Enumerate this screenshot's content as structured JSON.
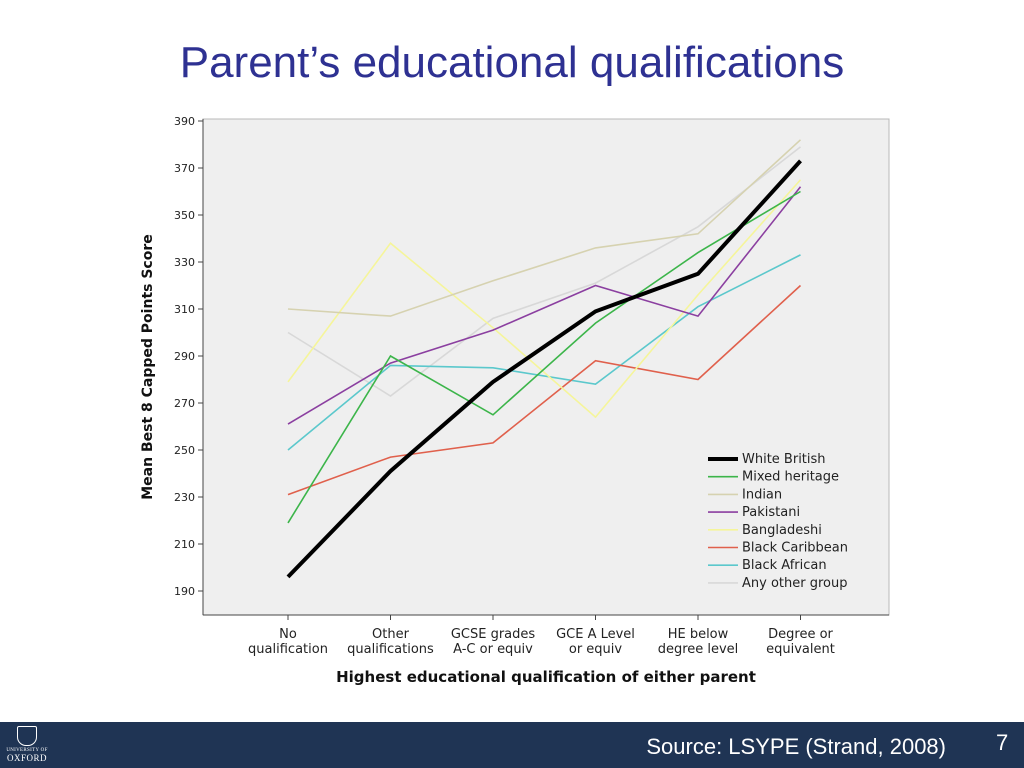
{
  "slide": {
    "title": "Parent’s educational qualifications",
    "source": "Source:  LSYPE (Strand, 2008)",
    "page_number": "7",
    "logo": {
      "line1": "UNIVERSITY OF",
      "line2": "OXFORD"
    }
  },
  "chart_data": {
    "type": "line",
    "title": "",
    "xlabel": "Highest educational qualification of either parent",
    "ylabel": "Mean Best 8 Capped Points Score",
    "ylim": [
      190,
      390
    ],
    "yticks": [
      190,
      210,
      230,
      250,
      270,
      290,
      310,
      330,
      350,
      370,
      390
    ],
    "categories": [
      [
        "No",
        "qualification"
      ],
      [
        "Other",
        "qualifications"
      ],
      [
        "GCSE grades",
        "A-C or equiv"
      ],
      [
        "GCE A Level",
        "or equiv"
      ],
      [
        "HE below",
        "degree level"
      ],
      [
        "Degree or",
        "equivalent"
      ]
    ],
    "grid": false,
    "legend_position": "bottom-right",
    "series": [
      {
        "name": "White British",
        "color": "#000000",
        "width": 4,
        "values": [
          196,
          241,
          279,
          309,
          325,
          373
        ]
      },
      {
        "name": "Mixed heritage",
        "color": "#3cb54a",
        "width": 1.6,
        "values": [
          219,
          290,
          265,
          304,
          334,
          360
        ]
      },
      {
        "name": "Indian",
        "color": "#d6d2b0",
        "width": 1.6,
        "values": [
          310,
          307,
          322,
          336,
          342,
          382
        ]
      },
      {
        "name": "Pakistani",
        "color": "#8b3fa0",
        "width": 1.6,
        "values": [
          261,
          287,
          301,
          320,
          307,
          362
        ]
      },
      {
        "name": "Bangladeshi",
        "color": "#f5f59a",
        "width": 1.6,
        "values": [
          279,
          338,
          302,
          264,
          316,
          365
        ]
      },
      {
        "name": "Black Caribbean",
        "color": "#e0604c",
        "width": 1.6,
        "values": [
          231,
          247,
          253,
          288,
          280,
          320
        ]
      },
      {
        "name": "Black African",
        "color": "#5bc8cc",
        "width": 1.6,
        "values": [
          250,
          286,
          285,
          278,
          311,
          333
        ]
      },
      {
        "name": "Any other group",
        "color": "#d8d8d8",
        "width": 1.6,
        "values": [
          300,
          273,
          306,
          321,
          345,
          379
        ]
      }
    ]
  }
}
